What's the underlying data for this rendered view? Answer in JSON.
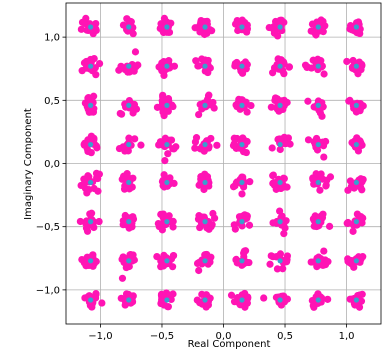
{
  "chart_data": {
    "type": "scatter",
    "title": "",
    "xlabel": "Real Component",
    "ylabel": "Imaginary Component",
    "xlim": [
      -1.28,
      1.28
    ],
    "ylim": [
      -1.27,
      1.27
    ],
    "x_ticks": [
      -1.0,
      -0.5,
      0.0,
      0.5,
      1.0
    ],
    "x_tick_labels": [
      "−1,0",
      "−0,5",
      "0,0",
      "0,5",
      "1,0"
    ],
    "y_ticks": [
      -1.0,
      -0.5,
      0.0,
      0.5,
      1.0
    ],
    "y_tick_labels": [
      "−1,0",
      "−0,5",
      "0,0",
      "0,5",
      "1,0"
    ],
    "grid": true,
    "legend": false,
    "constellation_levels": [
      -1.08,
      -0.77,
      -0.46,
      -0.15,
      0.15,
      0.46,
      0.77,
      1.08
    ],
    "series": [
      {
        "role": "received symbols",
        "color": "#ff14b4",
        "points_per_symbol": 18,
        "spread": 0.055
      },
      {
        "role": "ideal constellation points",
        "color": "#3a9fcf",
        "note": "8x8 grid at constellation_levels"
      }
    ]
  }
}
